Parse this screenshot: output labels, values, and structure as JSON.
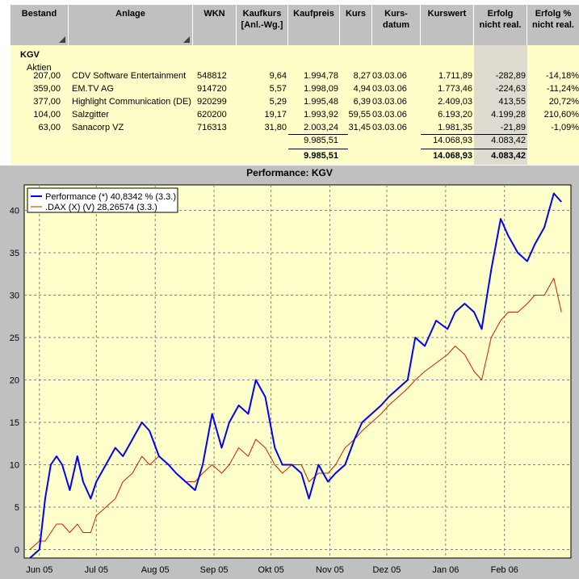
{
  "table": {
    "headers": {
      "bestand": "Bestand",
      "anlage": "Anlage",
      "wkn": "WKN",
      "kaufkurs_1": "Kaufkurs",
      "kaufkurs_2": "[Anl.-Wg.]",
      "kaufpreis": "Kaufpreis",
      "kurs": "Kurs",
      "kursdatum_1": "Kurs-",
      "kursdatum_2": "datum",
      "kurswert": "Kurswert",
      "erfolg_1": "Erfolg",
      "erfolg_2": "nicht real.",
      "erfolgp_1": "Erfolg %",
      "erfolgp_2": "nicht real."
    },
    "group": "KGV",
    "subgroup": "Aktien",
    "rows": [
      {
        "bestand": "207,00",
        "anlage": "CDV Software Entertainment",
        "wkn": "548812",
        "kaufkurs": "9,64",
        "kaufpreis": "1.994,78",
        "kurs": "8,27",
        "datum": "03.03.06",
        "kurswert": "1.711,89",
        "erfolg": "-282,89",
        "erfolgp": "-14,18%"
      },
      {
        "bestand": "359,00",
        "anlage": "EM.TV AG",
        "wkn": "914720",
        "kaufkurs": "5,57",
        "kaufpreis": "1.998,09",
        "kurs": "4,94",
        "datum": "03.03.06",
        "kurswert": "1.773,46",
        "erfolg": "-224,63",
        "erfolgp": "-11,24%"
      },
      {
        "bestand": "377,00",
        "anlage": "Highlight Communication (DE)",
        "wkn": "920299",
        "kaufkurs": "5,29",
        "kaufpreis": "1.995,48",
        "kurs": "6,39",
        "datum": "03.03.06",
        "kurswert": "2.409,03",
        "erfolg": "413,55",
        "erfolgp": "20,72%"
      },
      {
        "bestand": "104,00",
        "anlage": "Salzgitter",
        "wkn": "620200",
        "kaufkurs": "19,17",
        "kaufpreis": "1.993,92",
        "kurs": "59,55",
        "datum": "03.03.06",
        "kurswert": "6.193,20",
        "erfolg": "4.199,28",
        "erfolgp": "210,60%"
      },
      {
        "bestand": "63,00",
        "anlage": "Sanacorp VZ",
        "wkn": "716313",
        "kaufkurs": "31,80",
        "kaufpreis": "2.003,24",
        "kurs": "31,45",
        "datum": "03.03.06",
        "kurswert": "1.981,35",
        "erfolg": "-21,89",
        "erfolgp": "-1,09%"
      }
    ],
    "subtotal": {
      "kaufpreis": "9.985,51",
      "kurswert": "14.068,93",
      "erfolg": "4.083,42"
    },
    "total": {
      "kaufpreis": "9.985,51",
      "kurswert": "14.068,93",
      "erfolg": "4.083,42"
    }
  },
  "chart_data": {
    "type": "line",
    "title": "Performance: KGV",
    "x_tick_labels": [
      "Jun 05",
      "Jul 05",
      "Aug 05",
      "Sep 05",
      "Okt 05",
      "Nov 05",
      "Dez 05",
      "Jan 06",
      "Feb 06"
    ],
    "y_ticks": [
      0,
      5,
      10,
      15,
      20,
      25,
      30,
      35,
      40
    ],
    "ylim": [
      -1,
      43
    ],
    "grid": true,
    "legend_position": "top-left",
    "colors": {
      "performance": "#0000ff",
      "dax": "#cc2200",
      "plot_bg": "#ffffcc",
      "grid": "#808080"
    },
    "series": [
      {
        "name": "Performance (*) 40,8342 % (3.3.)",
        "x": [
          "2005-05-27",
          "2005-06-01",
          "2005-06-04",
          "2005-06-07",
          "2005-06-10",
          "2005-06-13",
          "2005-06-17",
          "2005-06-21",
          "2005-06-24",
          "2005-06-28",
          "2005-07-01",
          "2005-07-06",
          "2005-07-11",
          "2005-07-15",
          "2005-07-20",
          "2005-07-25",
          "2005-07-29",
          "2005-08-03",
          "2005-08-08",
          "2005-08-12",
          "2005-08-17",
          "2005-08-22",
          "2005-08-26",
          "2005-08-31",
          "2005-09-05",
          "2005-09-09",
          "2005-09-14",
          "2005-09-19",
          "2005-09-23",
          "2005-09-28",
          "2005-10-03",
          "2005-10-07",
          "2005-10-12",
          "2005-10-17",
          "2005-10-21",
          "2005-10-26",
          "2005-10-31",
          "2005-11-04",
          "2005-11-09",
          "2005-11-14",
          "2005-11-18",
          "2005-11-23",
          "2005-11-28",
          "2005-12-02",
          "2005-12-07",
          "2005-12-12",
          "2005-12-16",
          "2005-12-21",
          "2005-12-27",
          "2006-01-02",
          "2006-01-06",
          "2006-01-11",
          "2006-01-16",
          "2006-01-20",
          "2006-01-25",
          "2006-01-30",
          "2006-02-03",
          "2006-02-08",
          "2006-02-13",
          "2006-02-17",
          "2006-02-22",
          "2006-02-27",
          "2006-03-03"
        ],
        "values": [
          -1,
          0,
          6,
          10,
          11,
          10,
          7,
          11,
          8,
          6,
          8,
          10,
          12,
          11,
          13,
          15,
          14,
          11,
          10,
          9,
          8,
          7,
          10,
          16,
          12,
          15,
          17,
          16,
          20,
          18,
          12,
          10,
          10,
          9,
          6,
          10,
          8,
          9,
          10,
          13,
          15,
          16,
          17,
          18,
          19,
          20,
          25,
          24,
          27,
          26,
          28,
          29,
          28,
          26,
          33,
          39,
          37,
          35,
          34,
          36,
          38,
          42,
          41
        ]
      },
      {
        "name": ".DAX (X) (V) 28,26574 (3.3.)",
        "x": [
          "2005-05-27",
          "2005-06-01",
          "2005-06-04",
          "2005-06-07",
          "2005-06-10",
          "2005-06-13",
          "2005-06-17",
          "2005-06-21",
          "2005-06-24",
          "2005-06-28",
          "2005-07-01",
          "2005-07-06",
          "2005-07-11",
          "2005-07-15",
          "2005-07-20",
          "2005-07-25",
          "2005-07-29",
          "2005-08-03",
          "2005-08-08",
          "2005-08-12",
          "2005-08-17",
          "2005-08-22",
          "2005-08-26",
          "2005-08-31",
          "2005-09-05",
          "2005-09-09",
          "2005-09-14",
          "2005-09-19",
          "2005-09-23",
          "2005-09-28",
          "2005-10-03",
          "2005-10-07",
          "2005-10-12",
          "2005-10-17",
          "2005-10-21",
          "2005-10-26",
          "2005-10-31",
          "2005-11-04",
          "2005-11-09",
          "2005-11-14",
          "2005-11-18",
          "2005-11-23",
          "2005-11-28",
          "2005-12-02",
          "2005-12-07",
          "2005-12-12",
          "2005-12-16",
          "2005-12-21",
          "2005-12-27",
          "2006-01-02",
          "2006-01-06",
          "2006-01-11",
          "2006-01-16",
          "2006-01-20",
          "2006-01-25",
          "2006-01-30",
          "2006-02-03",
          "2006-02-08",
          "2006-02-13",
          "2006-02-17",
          "2006-02-22",
          "2006-02-27",
          "2006-03-03"
        ],
        "values": [
          0,
          1,
          1,
          2,
          3,
          3,
          2,
          3,
          2,
          2,
          4,
          5,
          6,
          8,
          9,
          11,
          10,
          11,
          10,
          9,
          8,
          8,
          9,
          10,
          9,
          10,
          12,
          11,
          13,
          12,
          10,
          9,
          10,
          10,
          8,
          9,
          9,
          10,
          12,
          13,
          14,
          15,
          16,
          17,
          18,
          19,
          20,
          21,
          22,
          23,
          24,
          23,
          21,
          20,
          25,
          27,
          28,
          28,
          29,
          30,
          30,
          32,
          28
        ]
      }
    ]
  }
}
